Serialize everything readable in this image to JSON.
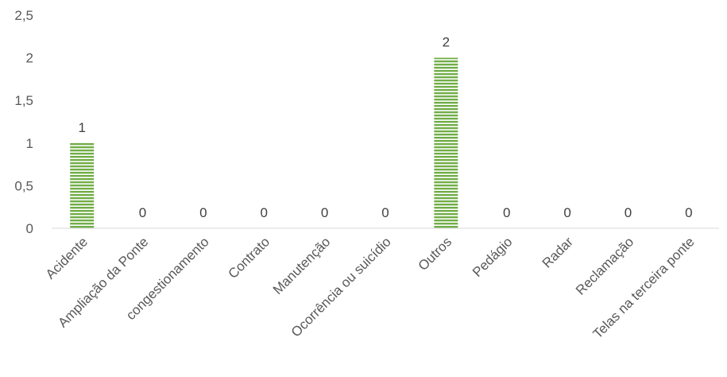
{
  "chart_data": {
    "type": "bar",
    "categories": [
      "Acidente",
      "Ampliação da Ponte",
      "congestionamento",
      "Contrato",
      "Manutenção",
      "Ocorrência ou suicídio",
      "Outros",
      "Pedágio",
      "Radar",
      "Reclamação",
      "Telas na terceira ponte"
    ],
    "values": [
      1,
      0,
      0,
      0,
      0,
      0,
      2,
      0,
      0,
      0,
      0
    ],
    "data_labels": [
      "1",
      "0",
      "0",
      "0",
      "0",
      "0",
      "2",
      "0",
      "0",
      "0",
      "0"
    ],
    "title": "",
    "xlabel": "",
    "ylabel": "",
    "ylim": [
      0,
      2.5
    ],
    "y_ticks": [
      "0",
      "0,5",
      "1",
      "1,5",
      "2",
      "2,5"
    ],
    "grid": false,
    "legend": "none",
    "bar_color": "#70ad47",
    "bar_pattern": "horizontal-stripes"
  }
}
